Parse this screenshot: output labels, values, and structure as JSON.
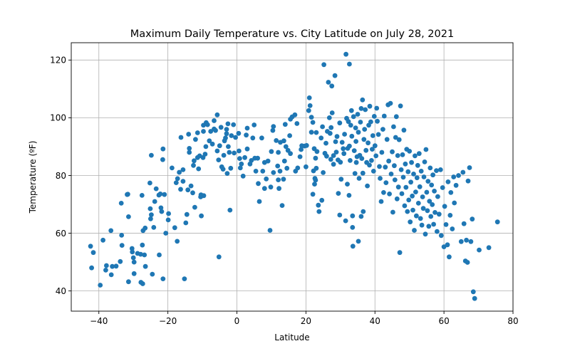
{
  "chart_data": {
    "type": "scatter",
    "title": "Maximum Daily Temperature vs. City Latitude on July 28, 2021",
    "xlabel": "Latitude",
    "ylabel": "Temperature (ºF)",
    "xlim": [
      -48,
      80
    ],
    "ylim": [
      33,
      126
    ],
    "xticks": [
      -40,
      -20,
      0,
      20,
      40,
      60,
      80
    ],
    "yticks": [
      40,
      60,
      80,
      100,
      120
    ],
    "grid": true,
    "marker_color": "#1f77b4",
    "points": [
      [
        -42.4,
        55.5
      ],
      [
        -42.1,
        48.0
      ],
      [
        -41.6,
        53.3
      ],
      [
        -39.6,
        42.0
      ],
      [
        -38.8,
        57.6
      ],
      [
        -38.0,
        47.2
      ],
      [
        -37.8,
        48.8
      ],
      [
        -36.5,
        60.9
      ],
      [
        -36.4,
        45.6
      ],
      [
        -36.1,
        48.5
      ],
      [
        -35.0,
        48.6
      ],
      [
        -33.8,
        50.2
      ],
      [
        -33.5,
        70.4
      ],
      [
        -33.4,
        59.3
      ],
      [
        -33.3,
        55.8
      ],
      [
        -31.8,
        73.4
      ],
      [
        -31.6,
        73.5
      ],
      [
        -31.4,
        43.2
      ],
      [
        -31.4,
        65.7
      ],
      [
        -30.4,
        54.7
      ],
      [
        -30.3,
        53.5
      ],
      [
        -30.0,
        51.5
      ],
      [
        -29.8,
        46.0
      ],
      [
        -29.8,
        50.0
      ],
      [
        -28.8,
        53.0
      ],
      [
        -27.9,
        52.7
      ],
      [
        -27.8,
        43.0
      ],
      [
        -27.5,
        73.1
      ],
      [
        -27.4,
        55.9
      ],
      [
        -27.3,
        42.5
      ],
      [
        -27.2,
        60.9
      ],
      [
        -26.8,
        52.5
      ],
      [
        -26.6,
        61.8
      ],
      [
        -26.5,
        48.5
      ],
      [
        -25.2,
        77.4
      ],
      [
        -25.1,
        68.5
      ],
      [
        -25.0,
        65.0
      ],
      [
        -24.8,
        66.4
      ],
      [
        -24.8,
        87.0
      ],
      [
        -24.5,
        45.8
      ],
      [
        -24.1,
        62.0
      ],
      [
        -23.8,
        71.0
      ],
      [
        -23.4,
        75.4
      ],
      [
        -22.6,
        73.2
      ],
      [
        -22.5,
        52.5
      ],
      [
        -22.2,
        73.6
      ],
      [
        -22.0,
        68.8
      ],
      [
        -21.8,
        67.5
      ],
      [
        -21.5,
        85.5
      ],
      [
        -21.4,
        89.2
      ],
      [
        -21.4,
        44.2
      ],
      [
        -21.0,
        73.4
      ],
      [
        -20.6,
        60.0
      ],
      [
        -19.9,
        64.6
      ],
      [
        -19.8,
        66.8
      ],
      [
        -18.8,
        82.6
      ],
      [
        -18.0,
        61.9
      ],
      [
        -17.6,
        77.5
      ],
      [
        -17.3,
        57.2
      ],
      [
        -17.2,
        78.9
      ],
      [
        -16.7,
        81.1
      ],
      [
        -16.3,
        75.2
      ],
      [
        -16.2,
        93.2
      ],
      [
        -15.6,
        82.0
      ],
      [
        -15.6,
        78.0
      ],
      [
        -15.2,
        44.2
      ],
      [
        -14.8,
        63.6
      ],
      [
        -14.5,
        66.5
      ],
      [
        -14.2,
        75.0
      ],
      [
        -14.0,
        94.3
      ],
      [
        -13.8,
        88.0
      ],
      [
        -13.8,
        89.4
      ],
      [
        -13.3,
        76.4
      ],
      [
        -12.8,
        74.0
      ],
      [
        -12.6,
        83.5
      ],
      [
        -12.4,
        85.1
      ],
      [
        -12.2,
        69.0
      ],
      [
        -12.0,
        92.5
      ],
      [
        -11.4,
        86.2
      ],
      [
        -11.4,
        94.8
      ],
      [
        -11.1,
        82.3
      ],
      [
        -10.8,
        86.8
      ],
      [
        -10.5,
        72.6
      ],
      [
        -10.4,
        73.3
      ],
      [
        -10.3,
        66.0
      ],
      [
        -9.8,
        86.2
      ],
      [
        -9.7,
        95.3
      ],
      [
        -9.7,
        97.4
      ],
      [
        -9.6,
        73.0
      ],
      [
        -9.2,
        87.4
      ],
      [
        -9.0,
        90.0
      ],
      [
        -8.9,
        98.3
      ],
      [
        -8.5,
        97.6
      ],
      [
        -8.0,
        92.0
      ],
      [
        -7.6,
        95.3
      ],
      [
        -7.1,
        90.9
      ],
      [
        -6.6,
        99.0
      ],
      [
        -6.6,
        96.1
      ],
      [
        -6.2,
        95.6
      ],
      [
        -5.7,
        101.0
      ],
      [
        -5.7,
        88.5
      ],
      [
        -5.3,
        85.4
      ],
      [
        -5.2,
        51.8
      ],
      [
        -5.0,
        90.3
      ],
      [
        -4.6,
        96.7
      ],
      [
        -4.4,
        83.0
      ],
      [
        -4.0,
        82.2
      ],
      [
        -3.8,
        87.0
      ],
      [
        -3.6,
        92.0
      ],
      [
        -3.3,
        93.0
      ],
      [
        -3.0,
        94.5
      ],
      [
        -3.0,
        96.0
      ],
      [
        -2.8,
        80.7
      ],
      [
        -2.6,
        97.9
      ],
      [
        -2.5,
        90.0
      ],
      [
        -2.2,
        88.0
      ],
      [
        -2.0,
        68.0
      ],
      [
        -1.8,
        82.5
      ],
      [
        -1.6,
        93.8
      ],
      [
        -1.0,
        97.6
      ],
      [
        -0.8,
        87.8
      ],
      [
        -0.4,
        93.2
      ],
      [
        0.5,
        94.6
      ],
      [
        0.6,
        88.5
      ],
      [
        0.8,
        85.9
      ],
      [
        1.0,
        82.6
      ],
      [
        1.3,
        84.0
      ],
      [
        1.8,
        79.8
      ],
      [
        2.3,
        86.2
      ],
      [
        2.7,
        94.0
      ],
      [
        3.0,
        96.4
      ],
      [
        3.0,
        89.2
      ],
      [
        3.8,
        84.0
      ],
      [
        4.2,
        85.2
      ],
      [
        4.6,
        93.0
      ],
      [
        5.0,
        97.5
      ],
      [
        5.2,
        86.0
      ],
      [
        5.5,
        81.5
      ],
      [
        6.0,
        86.0
      ],
      [
        6.2,
        77.2
      ],
      [
        6.5,
        71.0
      ],
      [
        7.2,
        93.0
      ],
      [
        7.5,
        81.5
      ],
      [
        8.0,
        84.5
      ],
      [
        8.0,
        75.5
      ],
      [
        8.5,
        78.8
      ],
      [
        9.0,
        85.0
      ],
      [
        9.6,
        61.0
      ],
      [
        9.8,
        76.0
      ],
      [
        10.0,
        88.3
      ],
      [
        10.4,
        95.6
      ],
      [
        10.6,
        97.0
      ],
      [
        10.6,
        81.0
      ],
      [
        11.4,
        92.1
      ],
      [
        11.8,
        83.3
      ],
      [
        12.0,
        78.5
      ],
      [
        12.0,
        88.0
      ],
      [
        12.2,
        75.5
      ],
      [
        12.5,
        81.5
      ],
      [
        12.6,
        91.5
      ],
      [
        13.1,
        69.6
      ],
      [
        13.5,
        78.7
      ],
      [
        13.6,
        92.0
      ],
      [
        13.8,
        85.0
      ],
      [
        14.0,
        97.7
      ],
      [
        14.2,
        90.0
      ],
      [
        14.5,
        82.5
      ],
      [
        14.8,
        88.7
      ],
      [
        15.3,
        93.8
      ],
      [
        15.5,
        87.6
      ],
      [
        15.5,
        99.5
      ],
      [
        16.0,
        100.3
      ],
      [
        16.8,
        101.0
      ],
      [
        17.0,
        81.5
      ],
      [
        17.4,
        98.0
      ],
      [
        17.6,
        82.6
      ],
      [
        18.3,
        86.5
      ],
      [
        18.6,
        89.0
      ],
      [
        18.8,
        90.3
      ],
      [
        19.6,
        90.2
      ],
      [
        20.0,
        83.0
      ],
      [
        20.2,
        90.4
      ],
      [
        20.8,
        102.5
      ],
      [
        21.0,
        106.9
      ],
      [
        21.2,
        104.2
      ],
      [
        21.6,
        100.2
      ],
      [
        21.6,
        95.0
      ],
      [
        22.0,
        98.4
      ],
      [
        22.0,
        73.5
      ],
      [
        22.2,
        81.6
      ],
      [
        22.4,
        89.3
      ],
      [
        22.5,
        77.0
      ],
      [
        22.6,
        79.0
      ],
      [
        22.8,
        86.0
      ],
      [
        22.8,
        78.4
      ],
      [
        23.0,
        82.5
      ],
      [
        23.0,
        94.9
      ],
      [
        23.2,
        88.3
      ],
      [
        23.6,
        69.7
      ],
      [
        23.8,
        67.5
      ],
      [
        24.4,
        93.0
      ],
      [
        24.6,
        71.4
      ],
      [
        24.8,
        96.9
      ],
      [
        25.0,
        81.0
      ],
      [
        25.2,
        118.4
      ],
      [
        25.5,
        87.7
      ],
      [
        25.8,
        91.2
      ],
      [
        26.0,
        86.7
      ],
      [
        26.2,
        95.3
      ],
      [
        26.5,
        112.3
      ],
      [
        26.8,
        100.0
      ],
      [
        27.0,
        94.6
      ],
      [
        27.2,
        85.6
      ],
      [
        27.3,
        96.6
      ],
      [
        27.5,
        111.0
      ],
      [
        27.6,
        101.7
      ],
      [
        28.0,
        86.9
      ],
      [
        28.0,
        83.9
      ],
      [
        28.4,
        114.6
      ],
      [
        28.6,
        91.7
      ],
      [
        28.8,
        88.1
      ],
      [
        29.0,
        93.5
      ],
      [
        29.3,
        85.4
      ],
      [
        29.4,
        73.8
      ],
      [
        29.8,
        98.2
      ],
      [
        29.8,
        66.3
      ],
      [
        30.0,
        84.6
      ],
      [
        30.2,
        78.7
      ],
      [
        30.5,
        91.5
      ],
      [
        30.8,
        89.3
      ],
      [
        31.0,
        87.6
      ],
      [
        31.2,
        94.3
      ],
      [
        31.5,
        64.3
      ],
      [
        31.6,
        122.0
      ],
      [
        31.8,
        99.8
      ],
      [
        32.0,
        77.0
      ],
      [
        32.1,
        89.4
      ],
      [
        32.3,
        98.7
      ],
      [
        32.5,
        73.1
      ],
      [
        32.6,
        90.2
      ],
      [
        32.6,
        118.6
      ],
      [
        32.8,
        85.2
      ],
      [
        33.0,
        97.4
      ],
      [
        33.2,
        102.5
      ],
      [
        33.3,
        93.6
      ],
      [
        33.5,
        66.0
      ],
      [
        33.5,
        62.0
      ],
      [
        33.6,
        55.5
      ],
      [
        33.8,
        100.4
      ],
      [
        34.0,
        88.6
      ],
      [
        34.2,
        80.7
      ],
      [
        34.4,
        96.5
      ],
      [
        34.5,
        91.8
      ],
      [
        34.6,
        84.5
      ],
      [
        34.8,
        86.5
      ],
      [
        35.0,
        101.2
      ],
      [
        35.2,
        95.0
      ],
      [
        35.2,
        57.2
      ],
      [
        35.4,
        79.0
      ],
      [
        35.6,
        87.0
      ],
      [
        35.8,
        98.5
      ],
      [
        36.0,
        103.2
      ],
      [
        36.0,
        65.8
      ],
      [
        36.2,
        85.9
      ],
      [
        36.4,
        106.2
      ],
      [
        36.5,
        80.8
      ],
      [
        36.6,
        67.5
      ],
      [
        36.8,
        92.5
      ],
      [
        37.0,
        96.0
      ],
      [
        37.2,
        102.8
      ],
      [
        37.4,
        88.7
      ],
      [
        37.6,
        84.5
      ],
      [
        37.8,
        76.4
      ],
      [
        38.0,
        91.3
      ],
      [
        38.2,
        97.4
      ],
      [
        38.4,
        83.6
      ],
      [
        38.5,
        104.0
      ],
      [
        38.8,
        98.6
      ],
      [
        39.0,
        85.2
      ],
      [
        39.2,
        89.1
      ],
      [
        39.4,
        93.8
      ],
      [
        39.6,
        81.5
      ],
      [
        39.8,
        100.5
      ],
      [
        40.0,
        90.3
      ],
      [
        40.3,
        86.8
      ],
      [
        40.5,
        103.3
      ],
      [
        40.7,
        98.8
      ],
      [
        41.0,
        94.2
      ],
      [
        41.3,
        83.1
      ],
      [
        41.5,
        79.0
      ],
      [
        41.8,
        71.0
      ],
      [
        42.0,
        88.0
      ],
      [
        42.3,
        96.0
      ],
      [
        42.5,
        74.1
      ],
      [
        42.7,
        100.6
      ],
      [
        43.0,
        82.9
      ],
      [
        43.2,
        77.5
      ],
      [
        43.5,
        92.5
      ],
      [
        43.8,
        104.5
      ],
      [
        44.0,
        85.0
      ],
      [
        44.2,
        73.6
      ],
      [
        44.5,
        105.0
      ],
      [
        44.7,
        80.5
      ],
      [
        45.0,
        88.2
      ],
      [
        45.2,
        67.3
      ],
      [
        45.4,
        96.9
      ],
      [
        45.6,
        83.4
      ],
      [
        45.8,
        78.5
      ],
      [
        46.0,
        93.2
      ],
      [
        46.2,
        100.4
      ],
      [
        46.4,
        71.9
      ],
      [
        46.6,
        86.9
      ],
      [
        46.8,
        76.0
      ],
      [
        47.0,
        92.4
      ],
      [
        47.2,
        53.3
      ],
      [
        47.4,
        104.1
      ],
      [
        47.6,
        82.0
      ],
      [
        47.8,
        73.7
      ],
      [
        48.0,
        87.2
      ],
      [
        48.2,
        79.4
      ],
      [
        48.4,
        95.7
      ],
      [
        48.6,
        69.5
      ],
      [
        48.8,
        84.0
      ],
      [
        49.0,
        75.9
      ],
      [
        49.2,
        89.1
      ],
      [
        49.4,
        67.5
      ],
      [
        49.6,
        81.3
      ],
      [
        49.8,
        71.5
      ],
      [
        50.0,
        88.4
      ],
      [
        50.2,
        63.9
      ],
      [
        50.4,
        77.7
      ],
      [
        50.6,
        84.5
      ],
      [
        50.8,
        72.9
      ],
      [
        51.0,
        68.0
      ],
      [
        51.2,
        80.5
      ],
      [
        51.4,
        61.0
      ],
      [
        51.6,
        86.8
      ],
      [
        51.8,
        74.3
      ],
      [
        52.0,
        66.0
      ],
      [
        52.2,
        79.2
      ],
      [
        52.4,
        83.5
      ],
      [
        52.6,
        70.4
      ],
      [
        52.8,
        87.6
      ],
      [
        53.0,
        76.1
      ],
      [
        53.2,
        65.1
      ],
      [
        53.4,
        81.5
      ],
      [
        53.6,
        62.8
      ],
      [
        53.8,
        72.6
      ],
      [
        54.0,
        68.6
      ],
      [
        54.2,
        79.5
      ],
      [
        54.4,
        84.7
      ],
      [
        54.6,
        59.7
      ],
      [
        54.8,
        89.0
      ],
      [
        55.0,
        74.2
      ],
      [
        55.2,
        67.8
      ],
      [
        55.4,
        78.0
      ],
      [
        55.6,
        62.4
      ],
      [
        55.8,
        71.1
      ],
      [
        56.0,
        82.6
      ],
      [
        56.2,
        65.8
      ],
      [
        56.4,
        76.7
      ],
      [
        56.6,
        69.9
      ],
      [
        56.8,
        80.2
      ],
      [
        57.0,
        63.1
      ],
      [
        57.2,
        74.6
      ],
      [
        57.4,
        67.2
      ],
      [
        57.8,
        81.7
      ],
      [
        58.0,
        60.6
      ],
      [
        58.2,
        72.7
      ],
      [
        58.6,
        66.6
      ],
      [
        59.0,
        82.0
      ],
      [
        59.2,
        59.2
      ],
      [
        59.6,
        75.8
      ],
      [
        60.0,
        55.3
      ],
      [
        60.2,
        69.3
      ],
      [
        60.6,
        63.0
      ],
      [
        61.0,
        56.0
      ],
      [
        61.2,
        77.8
      ],
      [
        61.5,
        51.8
      ],
      [
        61.8,
        66.2
      ],
      [
        62.0,
        74.1
      ],
      [
        62.4,
        61.5
      ],
      [
        62.8,
        79.5
      ],
      [
        63.0,
        70.5
      ],
      [
        63.5,
        76.6
      ],
      [
        64.2,
        80.0
      ],
      [
        65.0,
        57.1
      ],
      [
        65.5,
        81.1
      ],
      [
        65.8,
        63.3
      ],
      [
        66.2,
        50.4
      ],
      [
        66.5,
        57.6
      ],
      [
        66.8,
        49.9
      ],
      [
        67.0,
        78.1
      ],
      [
        67.4,
        82.7
      ],
      [
        67.8,
        57.1
      ],
      [
        68.2,
        64.9
      ],
      [
        68.5,
        39.7
      ],
      [
        68.9,
        37.4
      ],
      [
        70.2,
        54.2
      ],
      [
        73.0,
        55.0
      ],
      [
        75.5,
        63.9
      ]
    ]
  }
}
